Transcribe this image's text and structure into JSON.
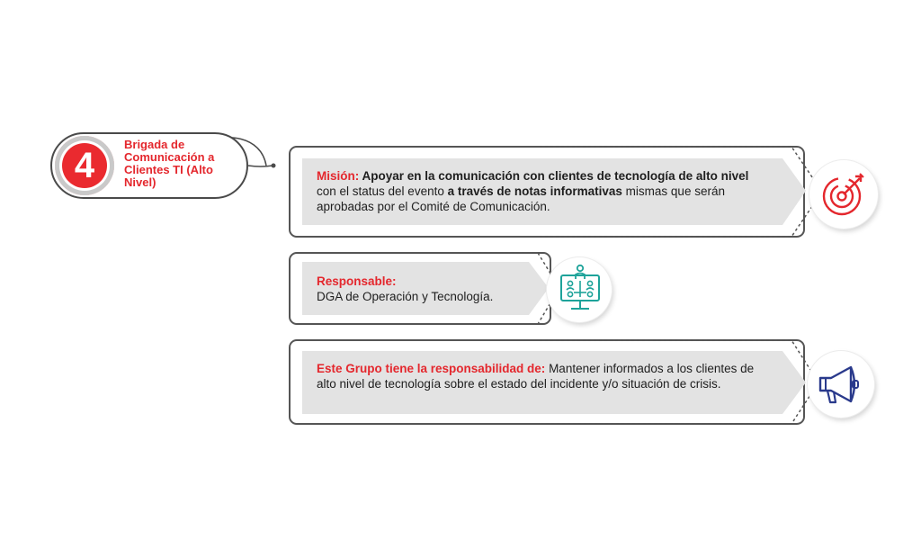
{
  "badge": {
    "number": "4",
    "label": "Brigada de Comunicación a Clientes TI (Alto Nivel)"
  },
  "cards": [
    {
      "label": "Misión:",
      "text_parts": [
        {
          "text": " Apoyar en la comunicación con clientes de tecnología de alto nivel",
          "bold": true
        },
        {
          "text": " con el status del evento ",
          "bold": false
        },
        {
          "text": "a través de notas informativas",
          "bold": true
        },
        {
          "text": " mismas que serán aprobadas por el Comité de Comunicación.",
          "bold": false
        }
      ],
      "icon": "target-icon"
    },
    {
      "label": "Responsable:",
      "text": "DGA de Operación y Tecnología.",
      "icon": "team-monitor-icon"
    },
    {
      "label": "Este Grupo tiene la responsabilidad de:",
      "text": " Mantener informados a los clientes de alto nivel de tecnología sobre el estado del incidente y/o situación de crisis.",
      "icon": "megaphone-icon"
    }
  ],
  "colors": {
    "accent_red": "#e4272d",
    "teal": "#1ea39a",
    "navy": "#2a3a8c",
    "card_gray": "#e3e3e3"
  }
}
